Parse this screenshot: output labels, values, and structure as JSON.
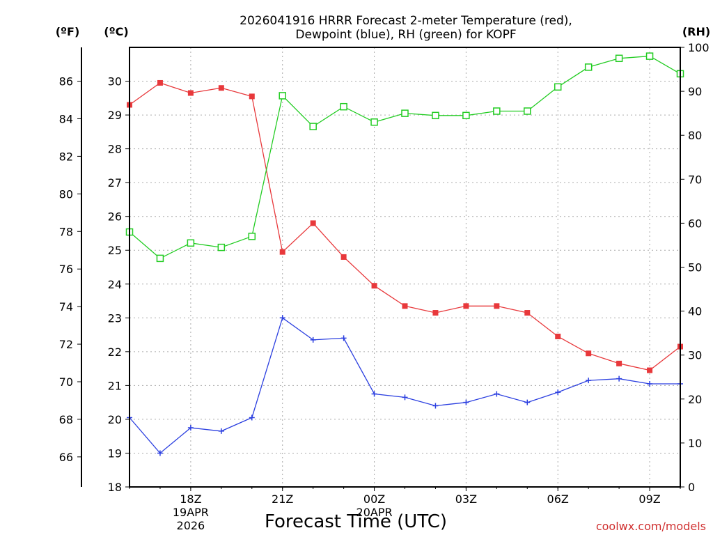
{
  "chart_data": {
    "type": "line",
    "title_lines": [
      "2026041916 HRRR Forecast 2-meter Temperature (red),",
      "Dewpoint (blue), RH (green) for KOPF"
    ],
    "unit_labels": {
      "fahrenheit": "(ºF)",
      "celsius": "(ºC)",
      "rh": "(RH)"
    },
    "xlabel": "Forecast Time (UTC)",
    "credit": "coolwx.com/models",
    "x_hours": [
      16,
      17,
      18,
      19,
      20,
      21,
      22,
      23,
      24,
      25,
      26,
      27,
      28,
      29,
      30,
      31,
      32,
      33,
      34
    ],
    "xlim": [
      16,
      34
    ],
    "x_ticks": [
      {
        "hour": 18,
        "lines": [
          "18Z",
          "19APR",
          "2026"
        ]
      },
      {
        "hour": 21,
        "lines": [
          "21Z"
        ]
      },
      {
        "hour": 24,
        "lines": [
          "00Z",
          "20APR"
        ]
      },
      {
        "hour": 27,
        "lines": [
          "03Z"
        ]
      },
      {
        "hour": 30,
        "lines": [
          "06Z"
        ]
      },
      {
        "hour": 33,
        "lines": [
          "09Z"
        ]
      }
    ],
    "celsius_axis": {
      "ylim": [
        18,
        31
      ],
      "ticks": [
        "18",
        "19",
        "20",
        "21",
        "22",
        "23",
        "24",
        "25",
        "26",
        "27",
        "28",
        "29",
        "30"
      ]
    },
    "fahrenheit_axis": {
      "ticks": [
        "66",
        "68",
        "70",
        "72",
        "74",
        "76",
        "78",
        "80",
        "82",
        "84",
        "86"
      ]
    },
    "rh_axis": {
      "ylim": [
        0,
        100
      ],
      "ticks": [
        "0",
        "10",
        "20",
        "30",
        "40",
        "50",
        "60",
        "70",
        "80",
        "90",
        "100"
      ]
    },
    "series": [
      {
        "name": "2-meter Temperature",
        "color": "#e8383b",
        "marker": "filled-square",
        "axis": "celsius",
        "values": [
          29.3,
          29.95,
          29.65,
          29.8,
          29.55,
          24.95,
          25.8,
          24.8,
          23.95,
          23.35,
          23.15,
          23.35,
          23.35,
          23.15,
          22.45,
          21.95,
          21.65,
          21.45,
          22.15
        ]
      },
      {
        "name": "Dewpoint",
        "color": "#2b3fe0",
        "marker": "plus",
        "axis": "celsius",
        "values": [
          20.05,
          19.0,
          19.75,
          19.65,
          20.05,
          23.0,
          22.35,
          22.4,
          20.75,
          20.65,
          20.4,
          20.5,
          20.75,
          20.5,
          20.8,
          21.15,
          21.2,
          21.05,
          21.05
        ]
      },
      {
        "name": "Relative Humidity",
        "color": "#22cc22",
        "marker": "open-square",
        "axis": "rh",
        "values": [
          58,
          52,
          55.5,
          54.5,
          57,
          89,
          82,
          86.5,
          83,
          85,
          84.5,
          84.5,
          85.5,
          85.5,
          91,
          95.5,
          97.5,
          98,
          94
        ]
      }
    ]
  }
}
